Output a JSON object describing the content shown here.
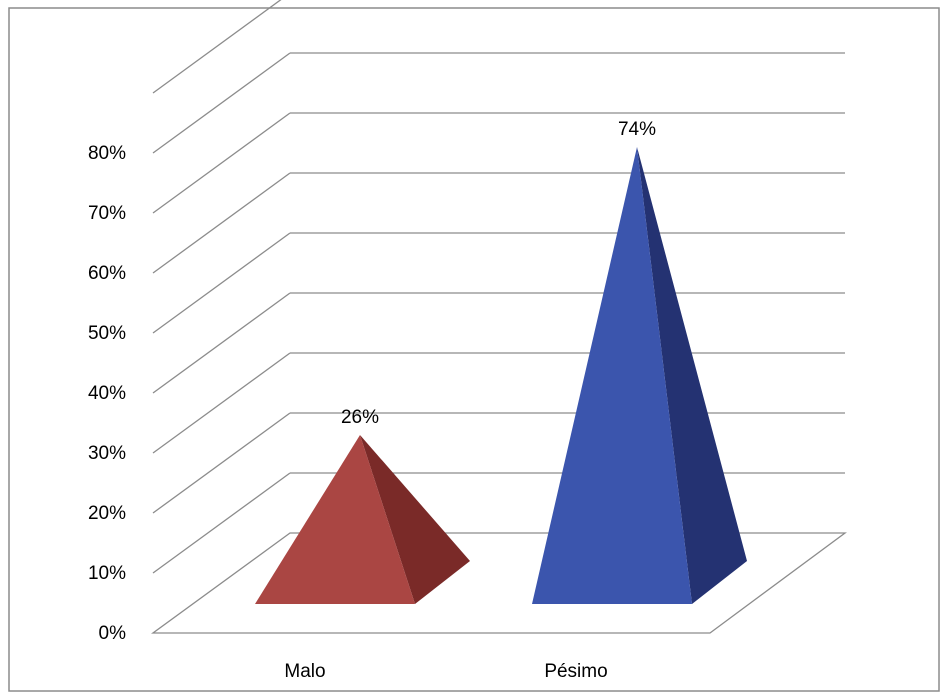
{
  "chart_data": {
    "type": "bar",
    "style": "3d-pyramid",
    "categories": [
      "Malo",
      "Pésimo"
    ],
    "values": [
      26,
      74
    ],
    "data_labels": [
      "26%",
      "74%"
    ],
    "colors": [
      "#AA4643",
      "#3B55AD"
    ],
    "side_colors": [
      "#7A2A28",
      "#243272"
    ],
    "ylim": [
      0,
      80
    ],
    "yticks": [
      "0%",
      "10%",
      "20%",
      "30%",
      "40%",
      "50%",
      "60%",
      "70%",
      "80%"
    ],
    "grid": true,
    "gridline_color": "#8c8c8c",
    "legend": "none"
  }
}
